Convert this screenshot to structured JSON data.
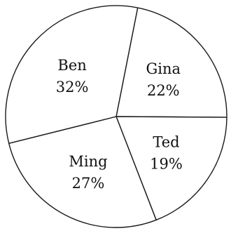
{
  "chart_data": {
    "type": "pie",
    "title": "",
    "slices": [
      {
        "name": "Gina",
        "value": 22,
        "value_label": "22%"
      },
      {
        "name": "Ted",
        "value": 19,
        "value_label": "19%"
      },
      {
        "name": "Ming",
        "value": 27,
        "value_label": "27%"
      },
      {
        "name": "Ben",
        "value": 32,
        "value_label": "32%"
      }
    ],
    "legend": "none",
    "labels_inside_slices": true,
    "colors": {
      "fill": "#ffffff",
      "stroke": "#1a1a1a",
      "text": "#111111"
    }
  }
}
